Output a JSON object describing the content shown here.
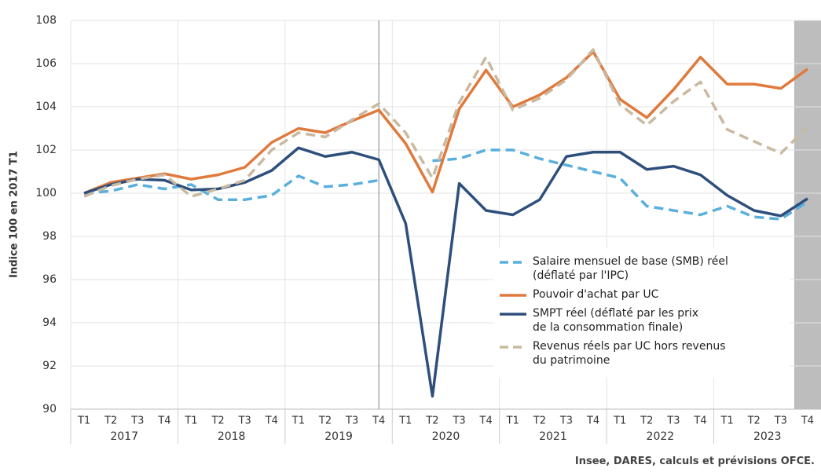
{
  "chart_data": {
    "type": "line",
    "y_label": "Indice 100 en 2017 T1",
    "source": "Insee, DARES, calculs et prévisions OFCE.",
    "categories": [
      "T1",
      "T2",
      "T3",
      "T4",
      "T1",
      "T2",
      "T3",
      "T4",
      "T1",
      "T2",
      "T3",
      "T4",
      "T1",
      "T2",
      "T3",
      "T4",
      "T1",
      "T2",
      "T3",
      "T4",
      "T1",
      "T2",
      "T3",
      "T4",
      "T1",
      "T2",
      "T3",
      "T4"
    ],
    "years": [
      "2017",
      "2018",
      "2019",
      "2020",
      "2021",
      "2022",
      "2023"
    ],
    "ylim": [
      90,
      108
    ],
    "yticks": [
      90,
      92,
      94,
      96,
      98,
      100,
      102,
      104,
      106,
      108
    ],
    "grid": true,
    "vline_index": 11,
    "shaded_index": 27,
    "series": [
      {
        "name": "Salaire mensuel de base (SMB) réel\n(déflaté par l'IPC)",
        "color": "#5aafdc",
        "dashed": true,
        "values": [
          100,
          100.1,
          100.4,
          100.2,
          100.4,
          99.7,
          99.7,
          99.9,
          100.8,
          100.3,
          100.4,
          100.6,
          null,
          101.5,
          101.6,
          102.0,
          102.0,
          101.6,
          101.3,
          101.0,
          100.7,
          99.4,
          99.2,
          99.0,
          99.4,
          98.9,
          98.8,
          99.6
        ]
      },
      {
        "name": "Pouvoir d'achat par UC",
        "color": "#e07a3c",
        "dashed": false,
        "values": [
          100,
          100.5,
          100.7,
          100.9,
          100.65,
          100.85,
          101.2,
          102.35,
          103.0,
          102.8,
          103.35,
          103.85,
          102.3,
          100.05,
          103.9,
          105.7,
          104.0,
          104.55,
          105.35,
          106.55,
          104.35,
          103.5,
          104.8,
          106.3,
          105.05,
          105.05,
          104.85,
          105.75
        ]
      },
      {
        "name": "SMPT réel (déflaté par les prix\nde la consommation finale)",
        "color": "#2e4f7c",
        "dashed": false,
        "values": [
          100,
          100.4,
          100.65,
          100.6,
          100.15,
          100.2,
          100.5,
          101.05,
          102.1,
          101.7,
          101.9,
          101.55,
          98.6,
          90.6,
          100.45,
          99.2,
          99.0,
          99.7,
          101.7,
          101.9,
          101.9,
          101.1,
          101.25,
          100.85,
          99.9,
          99.2,
          98.95,
          99.75
        ]
      },
      {
        "name": "Revenus réels par UC hors revenus\ndu patrimoine",
        "color": "#c9b9a0",
        "dashed": true,
        "values": [
          99.85,
          100.35,
          100.65,
          100.85,
          99.85,
          100.2,
          100.6,
          102.0,
          102.8,
          102.6,
          103.4,
          104.15,
          102.8,
          100.7,
          104.2,
          106.3,
          103.85,
          104.4,
          105.25,
          106.65,
          104.1,
          103.15,
          104.25,
          105.15,
          102.95,
          102.4,
          101.85,
          103.05
        ]
      }
    ]
  }
}
